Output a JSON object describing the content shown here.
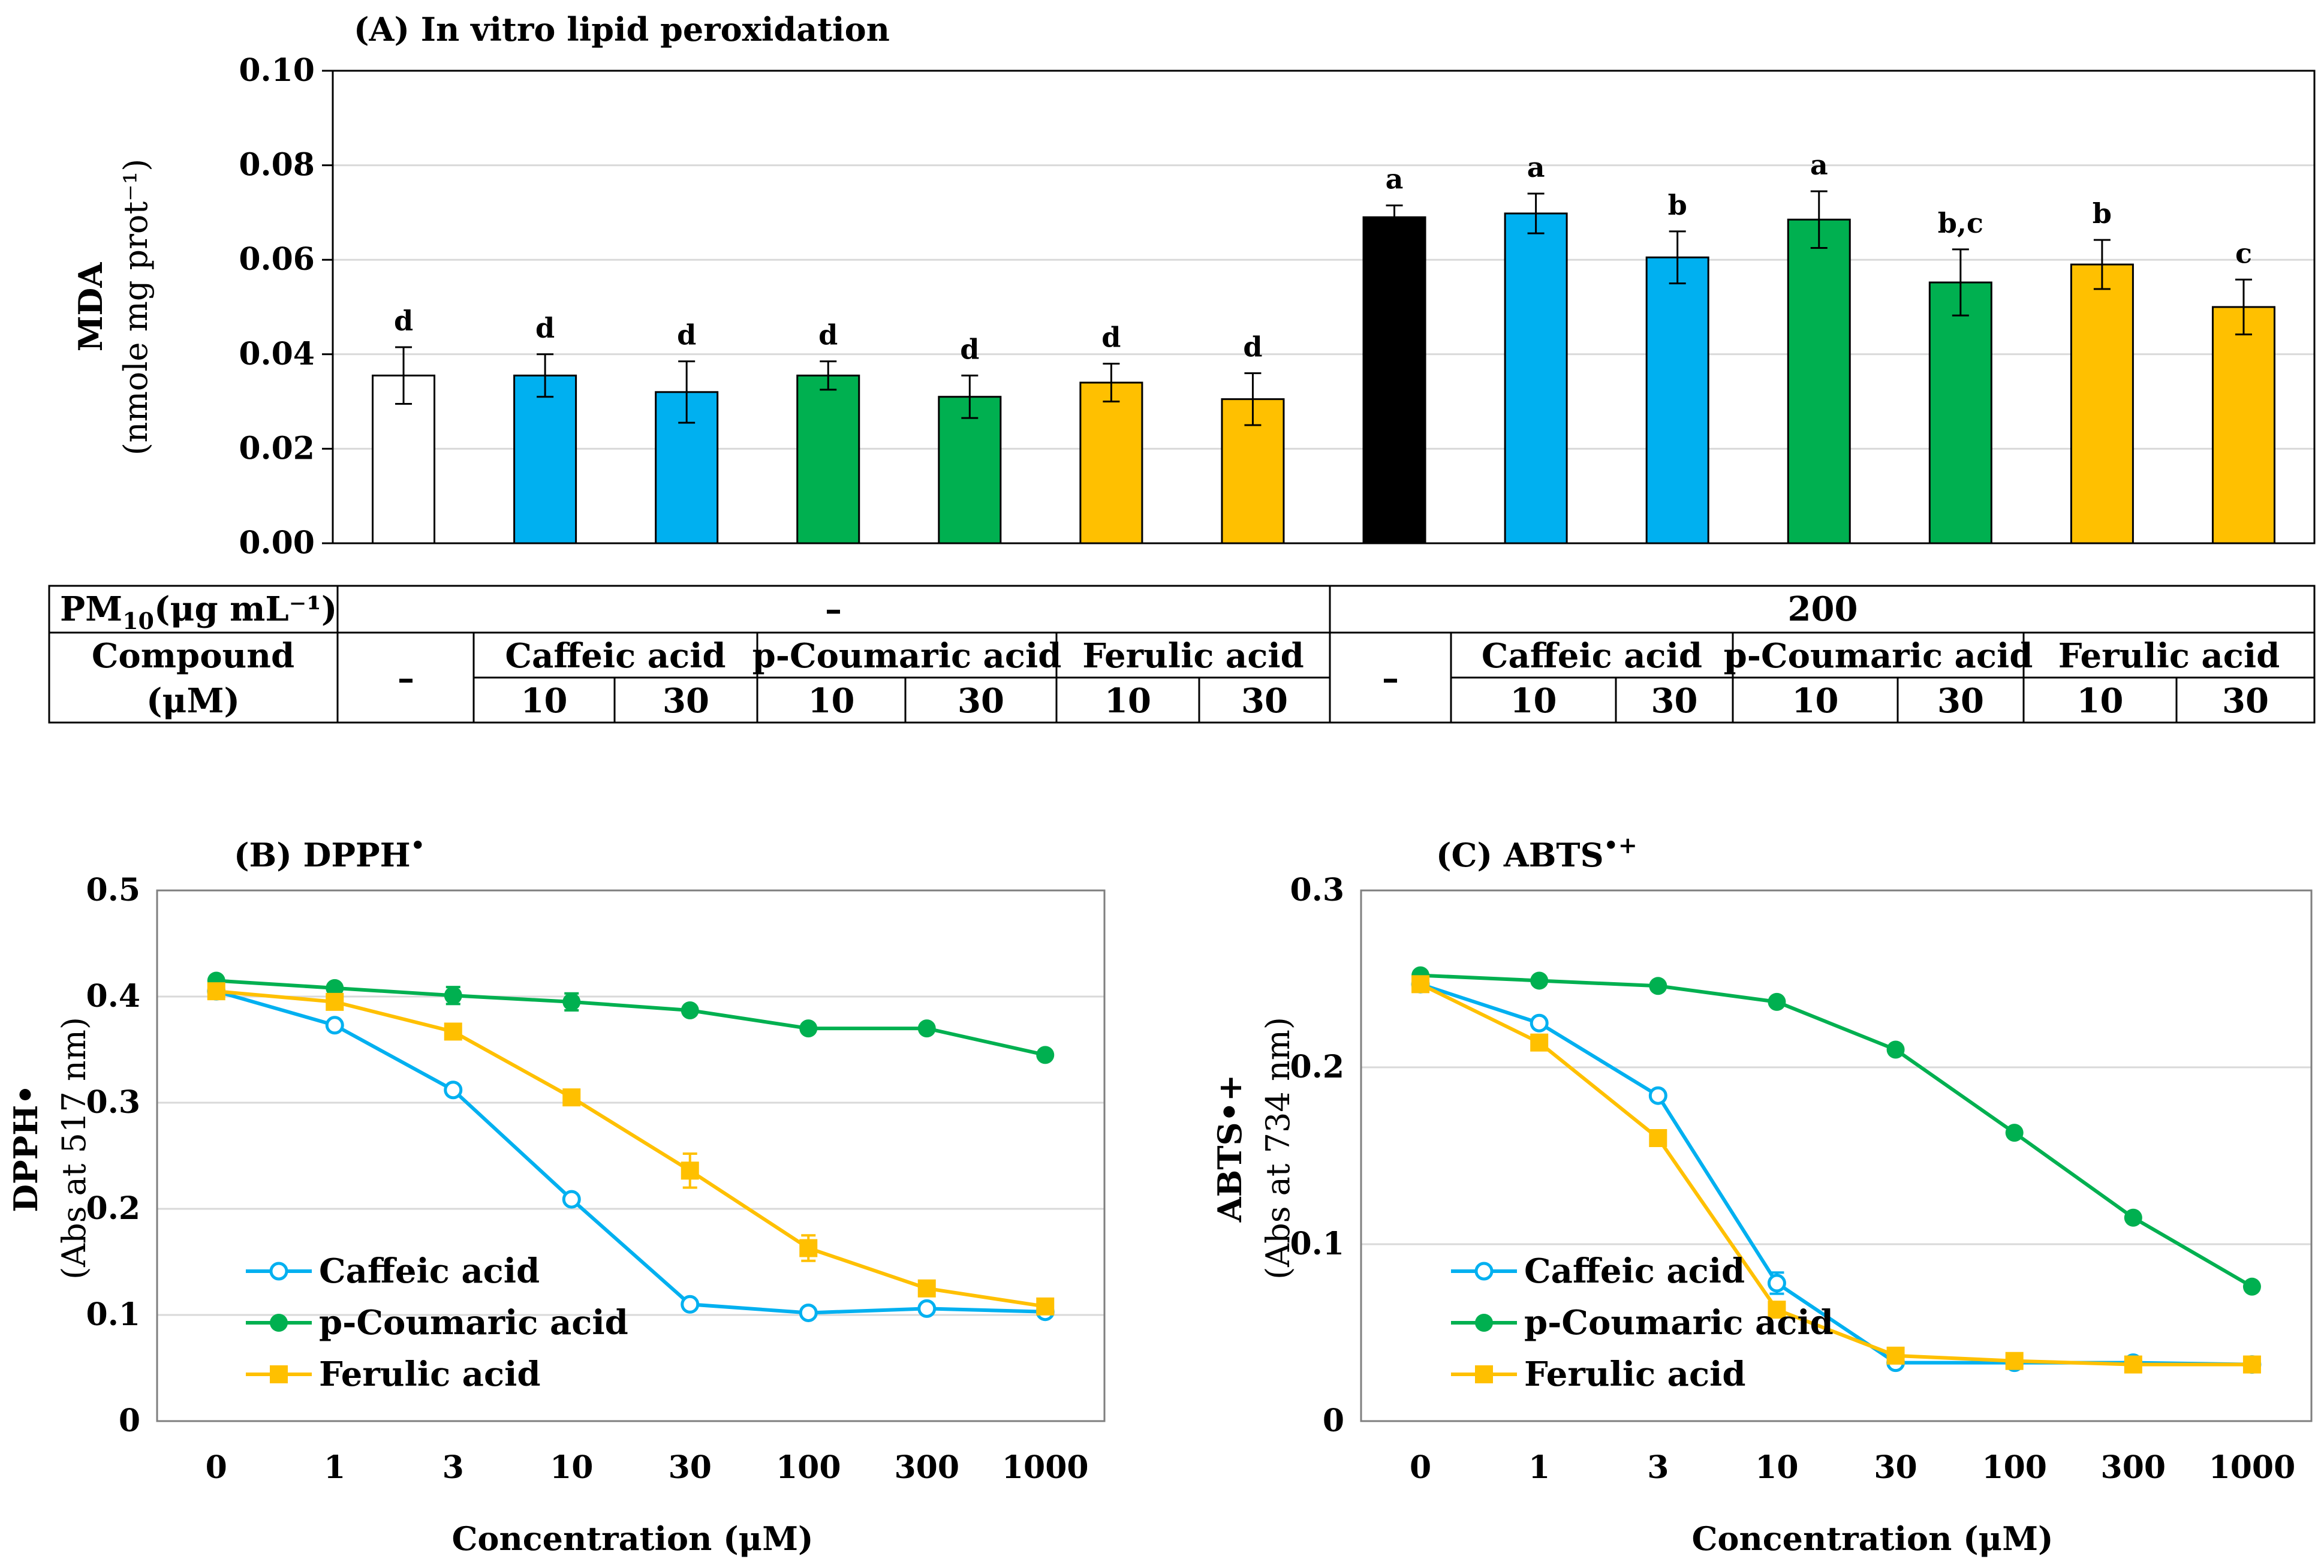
{
  "chart_data": [
    {
      "type": "bar",
      "title": "(A) In vitro lipid peroxidation",
      "ylabel_line1": "MDA",
      "ylabel_line2": "(nmole mg prot⁻¹)",
      "ylim": [
        0,
        0.1
      ],
      "yticks": [
        "0.00",
        "0.02",
        "0.04",
        "0.06",
        "0.08",
        "0.10"
      ],
      "bars": [
        {
          "value": 0.0355,
          "error": 0.006,
          "letter": "d",
          "color": "#ffffff"
        },
        {
          "value": 0.0355,
          "error": 0.0045,
          "letter": "d",
          "color": "#00b0f0"
        },
        {
          "value": 0.032,
          "error": 0.0065,
          "letter": "d",
          "color": "#00b0f0"
        },
        {
          "value": 0.0355,
          "error": 0.003,
          "letter": "d",
          "color": "#00b050"
        },
        {
          "value": 0.031,
          "error": 0.0045,
          "letter": "d",
          "color": "#00b050"
        },
        {
          "value": 0.034,
          "error": 0.004,
          "letter": "d",
          "color": "#ffc000"
        },
        {
          "value": 0.0305,
          "error": 0.0055,
          "letter": "d",
          "color": "#ffc000"
        },
        {
          "value": 0.069,
          "error": 0.0025,
          "letter": "a",
          "color": "#000000"
        },
        {
          "value": 0.0698,
          "error": 0.0042,
          "letter": "a",
          "color": "#00b0f0"
        },
        {
          "value": 0.0605,
          "error": 0.0055,
          "letter": "b",
          "color": "#00b0f0"
        },
        {
          "value": 0.0685,
          "error": 0.006,
          "letter": "a",
          "color": "#00b050"
        },
        {
          "value": 0.0552,
          "error": 0.007,
          "letter": "b,c",
          "color": "#00b050"
        },
        {
          "value": 0.059,
          "error": 0.0052,
          "letter": "b",
          "color": "#ffc000"
        },
        {
          "value": 0.05,
          "error": 0.0058,
          "letter": "c",
          "color": "#ffc000"
        }
      ],
      "table": {
        "pm_label": "PM",
        "pm_sub": "10",
        "pm_unit": "(μg mL⁻¹)",
        "pm_values": [
          "–",
          "200"
        ],
        "compound_label_1": "Compound",
        "compound_label_2": "(μM)",
        "none": "–",
        "compounds": [
          "Caffeic acid",
          "p-Coumaric acid",
          "Ferulic acid"
        ],
        "doses": [
          "10",
          "30"
        ]
      }
    },
    {
      "type": "line",
      "title": "(B) DPPH",
      "title_sup": "•",
      "ylabel_line1": "DPPH•",
      "ylabel_line2": "(Abs at 517 nm)",
      "xlabel": "Concentration (μM)",
      "categories": [
        "0",
        "1",
        "3",
        "10",
        "30",
        "100",
        "300",
        "1000"
      ],
      "ylim": [
        0,
        0.5
      ],
      "yticks": [
        "0",
        "0.1",
        "0.2",
        "0.3",
        "0.4",
        "0.5"
      ],
      "series": [
        {
          "name": "Caffeic acid",
          "color": "#00b0f0",
          "marker": "open-circle",
          "values": [
            0.405,
            0.373,
            0.312,
            0.209,
            0.11,
            0.102,
            0.106,
            0.103
          ],
          "errors": [
            0,
            0,
            0,
            0,
            0,
            0,
            0,
            0
          ]
        },
        {
          "name": "p-Coumaric acid",
          "color": "#00b050",
          "marker": "filled-circle",
          "values": [
            0.415,
            0.408,
            0.401,
            0.395,
            0.387,
            0.37,
            0.37,
            0.345
          ],
          "errors": [
            0,
            0,
            0.008,
            0.008,
            0,
            0,
            0,
            0
          ]
        },
        {
          "name": "Ferulic acid",
          "color": "#ffc000",
          "marker": "square",
          "values": [
            0.405,
            0.395,
            0.367,
            0.305,
            0.236,
            0.163,
            0.125,
            0.108
          ],
          "errors": [
            0,
            0,
            0,
            0,
            0.016,
            0.012,
            0,
            0
          ]
        }
      ]
    },
    {
      "type": "line",
      "title": "(C) ABTS",
      "title_sup": "•+",
      "ylabel_line1": "ABTS•+",
      "ylabel_line2": "(Abs at 734 nm)",
      "xlabel": "Concentration (μM)",
      "categories": [
        "0",
        "1",
        "3",
        "10",
        "30",
        "100",
        "300",
        "1000"
      ],
      "ylim": [
        0,
        0.3
      ],
      "yticks": [
        "0",
        "0.1",
        "0.2",
        "0.3"
      ],
      "series": [
        {
          "name": "Caffeic acid",
          "color": "#00b0f0",
          "marker": "open-circle",
          "values": [
            0.247,
            0.225,
            0.184,
            0.078,
            0.033,
            0.033,
            0.033,
            0.032
          ],
          "errors": [
            0,
            0,
            0,
            0.006,
            0,
            0,
            0,
            0
          ]
        },
        {
          "name": "p-Coumaric acid",
          "color": "#00b050",
          "marker": "filled-circle",
          "values": [
            0.252,
            0.249,
            0.246,
            0.237,
            0.21,
            0.163,
            0.115,
            0.076
          ],
          "errors": [
            0,
            0,
            0,
            0,
            0,
            0,
            0,
            0
          ]
        },
        {
          "name": "Ferulic acid",
          "color": "#ffc000",
          "marker": "square",
          "values": [
            0.247,
            0.214,
            0.16,
            0.063,
            0.037,
            0.034,
            0.032,
            0.032
          ],
          "errors": [
            0,
            0,
            0,
            0,
            0,
            0,
            0,
            0
          ]
        }
      ]
    }
  ]
}
